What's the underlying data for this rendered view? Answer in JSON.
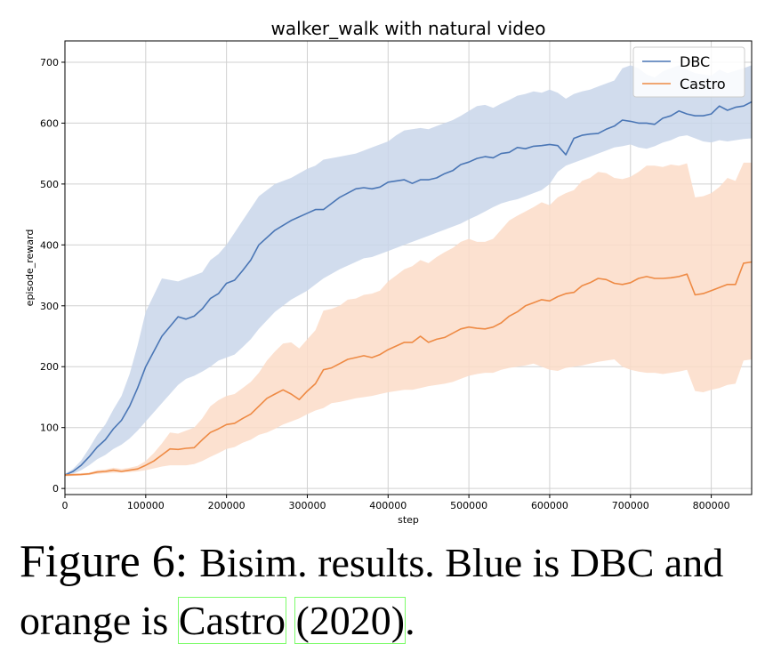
{
  "chart_data": {
    "type": "line",
    "title": "walker_walk with natural video",
    "xlabel": "step",
    "ylabel": "episode_reward",
    "xlim": [
      0,
      850000
    ],
    "ylim": [
      -10,
      735
    ],
    "xticks": [
      0,
      100000,
      200000,
      300000,
      400000,
      500000,
      600000,
      700000,
      800000
    ],
    "yticks": [
      0,
      100,
      200,
      300,
      400,
      500,
      600,
      700
    ],
    "grid": true,
    "legend_position": "top-right",
    "series": [
      {
        "name": "DBC",
        "color": "#4a76b5",
        "band_color": "#c9d6ea",
        "x": [
          0,
          10000,
          20000,
          30000,
          40000,
          50000,
          60000,
          70000,
          80000,
          90000,
          100000,
          120000,
          140000,
          150000,
          160000,
          170000,
          180000,
          190000,
          200000,
          210000,
          220000,
          230000,
          240000,
          260000,
          280000,
          300000,
          310000,
          320000,
          340000,
          360000,
          370000,
          380000,
          390000,
          400000,
          410000,
          420000,
          430000,
          440000,
          450000,
          460000,
          470000,
          480000,
          490000,
          500000,
          510000,
          520000,
          530000,
          540000,
          550000,
          560000,
          570000,
          580000,
          590000,
          600000,
          610000,
          620000,
          630000,
          640000,
          650000,
          660000,
          670000,
          680000,
          690000,
          700000,
          710000,
          720000,
          730000,
          740000,
          750000,
          760000,
          770000,
          780000,
          790000,
          800000,
          810000,
          820000,
          830000,
          840000,
          850000
        ],
        "values": [
          22,
          28,
          38,
          52,
          68,
          80,
          98,
          112,
          135,
          165,
          200,
          250,
          282,
          278,
          283,
          295,
          312,
          320,
          337,
          342,
          358,
          375,
          400,
          424,
          440,
          452,
          458,
          458,
          478,
          492,
          494,
          492,
          495,
          503,
          505,
          507,
          501,
          507,
          507,
          510,
          517,
          522,
          532,
          536,
          542,
          545,
          543,
          550,
          552,
          560,
          558,
          562,
          563,
          565,
          563,
          548,
          575,
          580,
          582,
          583,
          590,
          595,
          605,
          603,
          600,
          600,
          598,
          608,
          612,
          620,
          615,
          612,
          612,
          615,
          628,
          621,
          626,
          628,
          635
        ],
        "lower": [
          20,
          24,
          30,
          38,
          48,
          55,
          65,
          72,
          82,
          95,
          110,
          140,
          170,
          180,
          185,
          192,
          200,
          210,
          215,
          220,
          232,
          245,
          262,
          290,
          310,
          325,
          335,
          345,
          360,
          372,
          378,
          380,
          385,
          390,
          395,
          400,
          405,
          410,
          415,
          420,
          425,
          430,
          435,
          442,
          448,
          455,
          462,
          468,
          472,
          475,
          480,
          485,
          490,
          500,
          520,
          530,
          535,
          540,
          545,
          550,
          555,
          560,
          562,
          565,
          560,
          558,
          562,
          568,
          572,
          578,
          580,
          575,
          570,
          568,
          572,
          570,
          572,
          574,
          575
        ],
        "upper": [
          24,
          32,
          46,
          66,
          88,
          105,
          130,
          152,
          188,
          235,
          290,
          345,
          340,
          345,
          350,
          355,
          375,
          385,
          400,
          420,
          440,
          460,
          480,
          500,
          510,
          525,
          530,
          540,
          545,
          550,
          555,
          560,
          565,
          570,
          580,
          588,
          590,
          592,
          590,
          595,
          600,
          605,
          612,
          620,
          628,
          630,
          625,
          632,
          638,
          645,
          648,
          652,
          650,
          655,
          650,
          640,
          648,
          652,
          655,
          660,
          665,
          670,
          690,
          695,
          690,
          680,
          675,
          685,
          690,
          695,
          688,
          682,
          680,
          678,
          688,
          682,
          686,
          690,
          695
        ]
      },
      {
        "name": "Castro",
        "color": "#ee8a44",
        "band_color": "#fbdcc8",
        "x": [
          0,
          20000,
          30000,
          40000,
          50000,
          60000,
          70000,
          80000,
          90000,
          100000,
          110000,
          120000,
          130000,
          140000,
          150000,
          160000,
          170000,
          180000,
          190000,
          200000,
          210000,
          220000,
          230000,
          240000,
          250000,
          260000,
          270000,
          280000,
          290000,
          300000,
          310000,
          320000,
          330000,
          340000,
          350000,
          360000,
          370000,
          380000,
          390000,
          400000,
          410000,
          420000,
          430000,
          440000,
          450000,
          460000,
          470000,
          480000,
          490000,
          500000,
          510000,
          520000,
          530000,
          540000,
          550000,
          560000,
          570000,
          580000,
          590000,
          600000,
          610000,
          620000,
          630000,
          640000,
          650000,
          660000,
          670000,
          680000,
          690000,
          700000,
          710000,
          720000,
          730000,
          740000,
          750000,
          760000,
          770000,
          780000,
          790000,
          800000,
          810000,
          820000,
          830000,
          840000,
          850000
        ],
        "values": [
          22,
          23,
          24,
          27,
          28,
          30,
          28,
          30,
          32,
          38,
          45,
          55,
          65,
          64,
          66,
          67,
          80,
          92,
          98,
          105,
          107,
          115,
          122,
          135,
          148,
          155,
          162,
          155,
          146,
          160,
          172,
          195,
          198,
          205,
          212,
          215,
          218,
          215,
          220,
          228,
          234,
          240,
          240,
          250,
          240,
          245,
          248,
          255,
          262,
          265,
          263,
          262,
          265,
          272,
          283,
          290,
          300,
          305,
          310,
          308,
          315,
          320,
          322,
          333,
          338,
          345,
          343,
          337,
          335,
          338,
          345,
          348,
          345,
          345,
          346,
          348,
          352,
          318,
          320,
          325,
          330,
          335,
          335,
          370,
          372
        ],
        "lower": [
          20,
          21,
          22,
          24,
          25,
          26,
          26,
          27,
          28,
          30,
          33,
          36,
          38,
          38,
          38,
          40,
          45,
          52,
          58,
          65,
          68,
          75,
          80,
          88,
          92,
          98,
          105,
          110,
          115,
          122,
          128,
          132,
          140,
          142,
          145,
          148,
          150,
          152,
          155,
          158,
          160,
          162,
          162,
          165,
          168,
          170,
          172,
          175,
          180,
          185,
          188,
          190,
          190,
          195,
          198,
          200,
          202,
          205,
          200,
          195,
          193,
          198,
          200,
          202,
          205,
          208,
          210,
          212,
          200,
          195,
          192,
          190,
          190,
          188,
          190,
          192,
          195,
          160,
          158,
          162,
          165,
          170,
          172,
          210,
          212
        ],
        "upper": [
          24,
          25,
          26,
          30,
          31,
          34,
          32,
          34,
          37,
          45,
          58,
          74,
          92,
          90,
          95,
          100,
          115,
          135,
          145,
          152,
          155,
          165,
          175,
          190,
          210,
          225,
          238,
          240,
          230,
          245,
          260,
          292,
          295,
          300,
          310,
          312,
          318,
          320,
          325,
          340,
          350,
          360,
          365,
          375,
          370,
          380,
          388,
          395,
          405,
          410,
          405,
          405,
          410,
          425,
          440,
          448,
          455,
          462,
          470,
          465,
          478,
          485,
          490,
          505,
          510,
          520,
          518,
          510,
          508,
          512,
          520,
          530,
          530,
          528,
          532,
          530,
          534,
          478,
          480,
          485,
          495,
          510,
          505,
          535,
          535
        ]
      }
    ]
  },
  "caption": {
    "lead": "Figure 6: ",
    "text1": "Bisim. results. Blue is DBC and orange is ",
    "link1": "Castro",
    "space": " ",
    "link2_open": "(",
    "link2_year": "2020",
    "link2_close": ")",
    "end": "."
  }
}
